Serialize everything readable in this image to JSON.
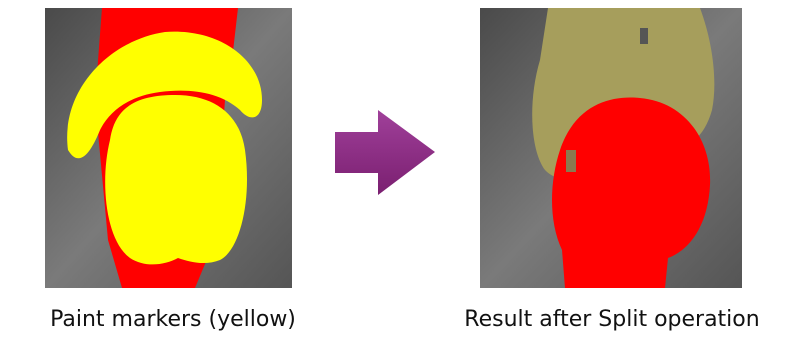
{
  "panels": [
    {
      "caption": "Paint markers (yellow)"
    },
    {
      "caption": "Result after Split operation"
    }
  ]
}
